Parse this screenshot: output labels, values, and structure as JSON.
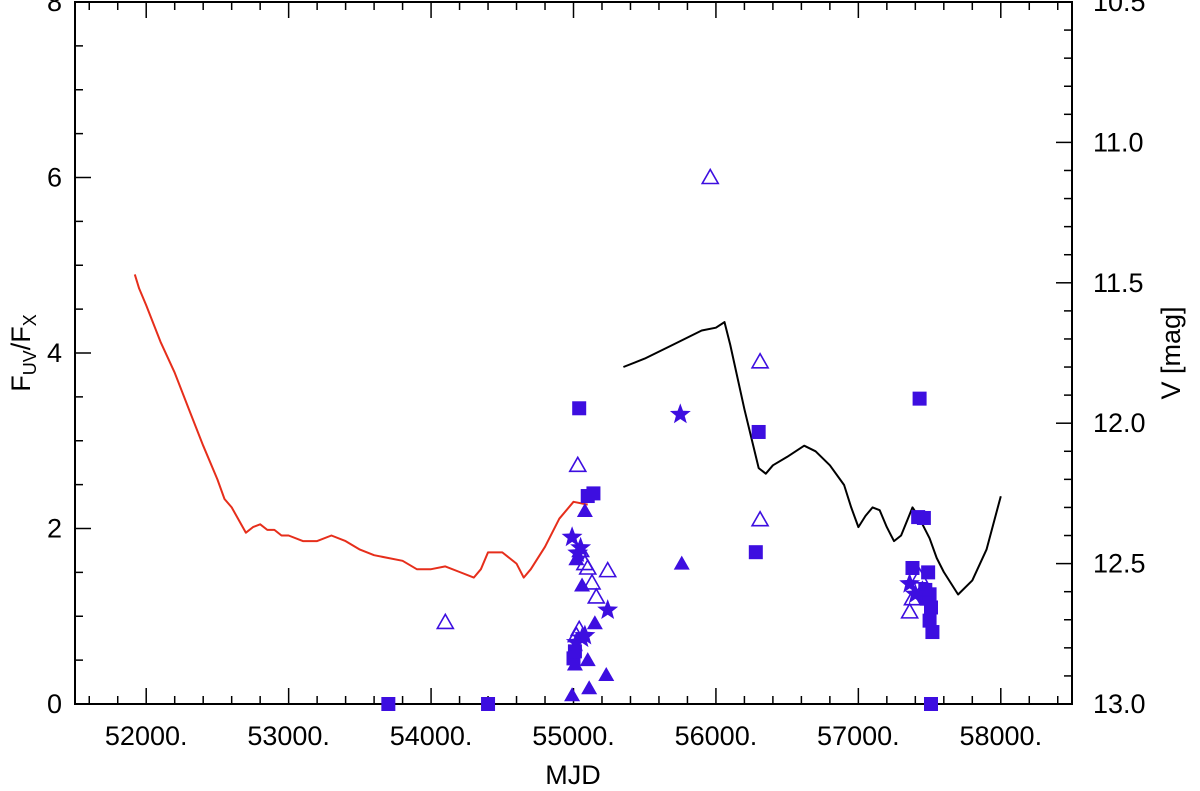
{
  "chart_data": {
    "type": "scatter",
    "title": "",
    "xlabel": "MJD",
    "ylabel": {
      "base": "F",
      "sub1": "UV",
      "mid": "/F",
      "sub2": "X"
    },
    "y2label": "V [mag]",
    "xlim": [
      51500,
      58500
    ],
    "ylim": [
      0,
      8
    ],
    "y2lim": [
      10.5,
      13.0
    ],
    "y2_inverted": true,
    "x_ticks": [
      52000,
      53000,
      54000,
      55000,
      56000,
      57000,
      58000
    ],
    "x_tick_labels": [
      "52000.",
      "53000.",
      "54000.",
      "55000.",
      "56000.",
      "57000.",
      "58000."
    ],
    "y_ticks": [
      0,
      2,
      4,
      6,
      8
    ],
    "y_tick_labels": [
      "0",
      "2",
      "4",
      "6",
      "8"
    ],
    "y2_ticks": [
      10.5,
      11.0,
      11.5,
      12.0,
      12.5,
      13.0
    ],
    "y2_tick_labels": [
      "10.5",
      "11.0",
      "11.5",
      "12.0",
      "12.5",
      "13.0"
    ],
    "grid": false,
    "marker_color": "#3d0ee0",
    "series": [
      {
        "marker": "square-filled",
        "x": [
          53700,
          54400,
          55000,
          55010,
          55040,
          55100,
          55140,
          56280,
          56300,
          57380,
          57420,
          57430,
          57460,
          57470,
          57480,
          57490,
          57500,
          57510,
          57520,
          57500,
          57510
        ],
        "y": [
          0,
          0,
          0.52,
          0.6,
          3.37,
          2.37,
          2.4,
          1.73,
          3.1,
          1.55,
          2.13,
          3.48,
          2.12,
          1.3,
          1.2,
          1.5,
          1.25,
          1.1,
          0.82,
          0.95,
          0
        ]
      },
      {
        "marker": "triangle-open",
        "x": [
          54100,
          55030,
          55050,
          55080,
          55100,
          55130,
          55160,
          55240,
          55960,
          56310,
          56310,
          57360,
          57380,
          57430,
          57450,
          55040,
          55020
        ],
        "y": [
          0.93,
          2.72,
          1.75,
          1.6,
          1.55,
          1.38,
          1.22,
          1.52,
          6.0,
          3.9,
          2.1,
          1.05,
          1.2,
          1.45,
          1.3,
          0.85,
          0.78
        ]
      },
      {
        "marker": "triangle-filled",
        "x": [
          54990,
          55020,
          55060,
          55080,
          55110,
          55150,
          55230,
          55760,
          55100,
          55010
        ],
        "y": [
          0.1,
          1.65,
          1.35,
          2.2,
          0.18,
          0.92,
          0.33,
          1.6,
          0.5,
          0.45
        ]
      },
      {
        "marker": "star",
        "x": [
          54990,
          55030,
          55060,
          55080,
          55240,
          55750,
          55020,
          55050,
          57360,
          57400
        ],
        "y": [
          1.9,
          1.72,
          0.75,
          0.78,
          1.07,
          3.3,
          0.7,
          1.78,
          1.37,
          1.25
        ]
      }
    ],
    "lines": [
      {
        "axis": "y2",
        "color": "#e62e1b",
        "x": [
          51920,
          51950,
          52000,
          52100,
          52200,
          52300,
          52400,
          52500,
          52550,
          52600,
          52700,
          52750,
          52800,
          52850,
          52900,
          52950,
          53000,
          53100,
          53200,
          53300,
          53400,
          53500,
          53600,
          53700,
          53800,
          53900,
          54000,
          54100,
          54200,
          54300,
          54350,
          54400,
          54500,
          54600,
          54650,
          54700,
          54800,
          54900,
          55000,
          55100
        ],
        "y": [
          11.47,
          11.52,
          11.58,
          11.71,
          11.82,
          11.95,
          12.08,
          12.2,
          12.27,
          12.3,
          12.39,
          12.37,
          12.36,
          12.38,
          12.38,
          12.4,
          12.4,
          12.42,
          12.42,
          12.4,
          12.42,
          12.45,
          12.47,
          12.48,
          12.49,
          12.52,
          12.52,
          12.51,
          12.53,
          12.55,
          12.52,
          12.46,
          12.46,
          12.5,
          12.55,
          12.52,
          12.44,
          12.34,
          12.28,
          12.29
        ]
      },
      {
        "axis": "y2",
        "color": "#000000",
        "x": [
          55350,
          55500,
          55700,
          55900,
          56000,
          56060,
          56100,
          56200,
          56300,
          56350,
          56400,
          56500,
          56620,
          56700,
          56800,
          56900,
          56950,
          57000,
          57050,
          57100,
          57150,
          57200,
          57250,
          57300,
          57380,
          57420,
          57500,
          57550,
          57600,
          57700,
          57800,
          57900,
          58000
        ],
        "y": [
          11.8,
          11.77,
          11.72,
          11.67,
          11.66,
          11.64,
          11.72,
          11.95,
          12.16,
          12.18,
          12.15,
          12.12,
          12.08,
          12.1,
          12.15,
          12.22,
          12.3,
          12.37,
          12.33,
          12.3,
          12.31,
          12.37,
          12.42,
          12.4,
          12.3,
          12.33,
          12.41,
          12.48,
          12.53,
          12.61,
          12.56,
          12.45,
          12.26
        ]
      }
    ]
  }
}
